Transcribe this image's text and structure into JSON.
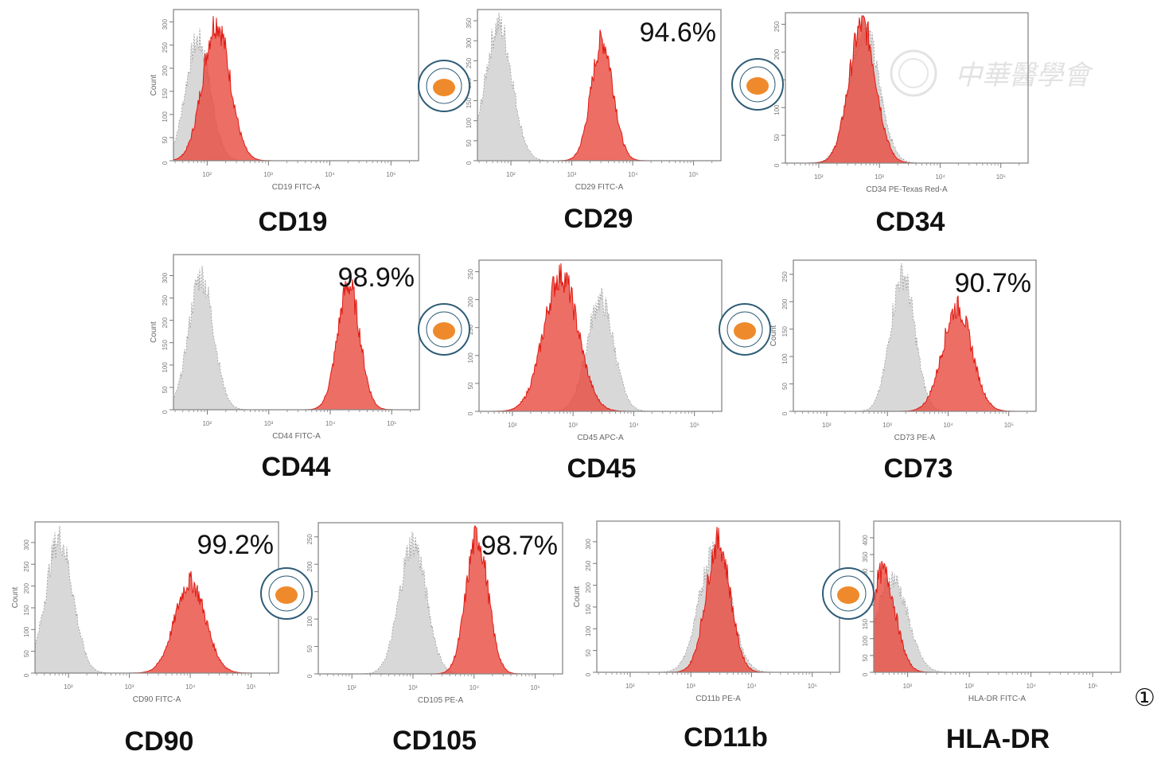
{
  "figure_label": "①",
  "watermark_text": "中華醫學會",
  "colors": {
    "isotype": "#d4d4d4",
    "isotype_edge": "#9a9a9a",
    "sample": "#e8453a",
    "sample_edge": "#e01a12"
  },
  "chart_data": [
    {
      "type": "histogram",
      "marker": "CD19",
      "xlabel": "CD19 FITC-A",
      "ylabel": "Count",
      "percent": "",
      "xscale": "log",
      "xticks": [
        "10²",
        "10³",
        "10⁴",
        "10⁵"
      ],
      "yticks": [
        "0",
        "50",
        "100",
        "150",
        "200",
        "250",
        "300"
      ],
      "ymax": 320,
      "series": [
        {
          "role": "isotype",
          "peak_log10": 1.85,
          "sd": 0.2,
          "peak_count": 260
        },
        {
          "role": "sample",
          "peak_log10": 2.15,
          "sd": 0.22,
          "peak_count": 300
        }
      ]
    },
    {
      "type": "histogram",
      "marker": "CD29",
      "xlabel": "CD29 FITC-A",
      "ylabel": "",
      "percent": "94.6%",
      "xscale": "log",
      "xticks": [
        "10²",
        "10³",
        "10⁴",
        "10⁵"
      ],
      "yticks": [
        "0",
        "50",
        "100",
        "150",
        "200",
        "250",
        "300",
        "350"
      ],
      "ymax": 370,
      "series": [
        {
          "role": "isotype",
          "peak_log10": 1.8,
          "sd": 0.22,
          "peak_count": 340
        },
        {
          "role": "sample",
          "peak_log10": 3.5,
          "sd": 0.18,
          "peak_count": 300
        }
      ]
    },
    {
      "type": "histogram",
      "marker": "CD34",
      "xlabel": "CD34 PE-Texas Red-A",
      "ylabel": "",
      "percent": "",
      "xscale": "log",
      "xticks": [
        "10²",
        "10³",
        "10⁴",
        "10⁵"
      ],
      "yticks": [
        "0",
        "50",
        "100",
        "150",
        "200",
        "250"
      ],
      "ymax": 265,
      "series": [
        {
          "role": "isotype",
          "peak_log10": 2.75,
          "sd": 0.24,
          "peak_count": 245
        },
        {
          "role": "sample",
          "peak_log10": 2.72,
          "sd": 0.22,
          "peak_count": 250
        }
      ]
    },
    {
      "type": "histogram",
      "marker": "CD44",
      "xlabel": "CD44 FITC-A",
      "ylabel": "Count",
      "percent": "98.9%",
      "xscale": "log",
      "xticks": [
        "10²",
        "10³",
        "10⁴",
        "10⁵"
      ],
      "yticks": [
        "0",
        "50",
        "100",
        "150",
        "200",
        "250",
        "300"
      ],
      "ymax": 340,
      "series": [
        {
          "role": "isotype",
          "peak_log10": 1.9,
          "sd": 0.2,
          "peak_count": 300
        },
        {
          "role": "sample",
          "peak_log10": 4.3,
          "sd": 0.18,
          "peak_count": 280
        }
      ]
    },
    {
      "type": "histogram",
      "marker": "CD45",
      "xlabel": "CD45 APC-A",
      "ylabel": "",
      "percent": "",
      "xscale": "log",
      "xticks": [
        "10²",
        "10³",
        "10⁴",
        "10⁵"
      ],
      "yticks": [
        "0",
        "50",
        "100",
        "150",
        "200",
        "250"
      ],
      "ymax": 265,
      "series": [
        {
          "role": "isotype",
          "peak_log10": 3.45,
          "sd": 0.22,
          "peak_count": 200
        },
        {
          "role": "sample",
          "peak_log10": 2.8,
          "sd": 0.28,
          "peak_count": 245
        }
      ]
    },
    {
      "type": "histogram",
      "marker": "CD73",
      "xlabel": "CD73 PE-A",
      "ylabel": "Count",
      "percent": "90.7%",
      "xscale": "log",
      "xticks": [
        "10²",
        "10³",
        "10⁴",
        "10⁵"
      ],
      "yticks": [
        "0",
        "50",
        "100",
        "150",
        "200",
        "250"
      ],
      "ymax": 270,
      "series": [
        {
          "role": "isotype",
          "peak_log10": 3.25,
          "sd": 0.2,
          "peak_count": 250
        },
        {
          "role": "sample",
          "peak_log10": 4.15,
          "sd": 0.24,
          "peak_count": 190
        }
      ]
    },
    {
      "type": "histogram",
      "marker": "CD90",
      "xlabel": "CD90 FITC-A",
      "ylabel": "Count",
      "percent": "99.2%",
      "xscale": "log",
      "xticks": [
        "10²",
        "10³",
        "10⁴",
        "10⁵"
      ],
      "yticks": [
        "0",
        "50",
        "100",
        "150",
        "200",
        "250",
        "300"
      ],
      "ymax": 340,
      "series": [
        {
          "role": "isotype",
          "peak_log10": 1.85,
          "sd": 0.22,
          "peak_count": 310
        },
        {
          "role": "sample",
          "peak_log10": 4.0,
          "sd": 0.25,
          "peak_count": 210
        }
      ]
    },
    {
      "type": "histogram",
      "marker": "CD105",
      "xlabel": "CD105 PE-A",
      "ylabel": "",
      "percent": "98.7%",
      "xscale": "log",
      "xticks": [
        "10²",
        "10³",
        "10⁴",
        "10⁵"
      ],
      "yticks": [
        "0",
        "50",
        "100",
        "150",
        "200",
        "250"
      ],
      "ymax": 270,
      "series": [
        {
          "role": "isotype",
          "peak_log10": 3.0,
          "sd": 0.22,
          "peak_count": 240
        },
        {
          "role": "sample",
          "peak_log10": 4.05,
          "sd": 0.18,
          "peak_count": 250
        }
      ]
    },
    {
      "type": "histogram",
      "marker": "CD11b",
      "xlabel": "CD11b PE-A",
      "ylabel": "Count",
      "percent": "",
      "xscale": "log",
      "xticks": [
        "10²",
        "10³",
        "10⁴",
        "10⁵"
      ],
      "yticks": [
        "0",
        "50",
        "100",
        "150",
        "200",
        "250",
        "300"
      ],
      "ymax": 340,
      "series": [
        {
          "role": "isotype",
          "peak_log10": 3.4,
          "sd": 0.25,
          "peak_count": 290
        },
        {
          "role": "sample",
          "peak_log10": 3.45,
          "sd": 0.2,
          "peak_count": 300
        }
      ]
    },
    {
      "type": "histogram",
      "marker": "HLA-DR",
      "xlabel": "HLA-DR FITC-A",
      "ylabel": "",
      "percent": "",
      "xscale": "log",
      "xticks": [
        "10²",
        "10³",
        "10⁴",
        "10⁵"
      ],
      "yticks": [
        "0",
        "50",
        "100",
        "150",
        "200",
        "250",
        "300",
        "350",
        "400"
      ],
      "ymax": 440,
      "series": [
        {
          "role": "isotype",
          "peak_log10": 1.75,
          "sd": 0.25,
          "peak_count": 280
        },
        {
          "role": "sample",
          "peak_log10": 1.6,
          "sd": 0.2,
          "peak_count": 300
        }
      ]
    }
  ]
}
